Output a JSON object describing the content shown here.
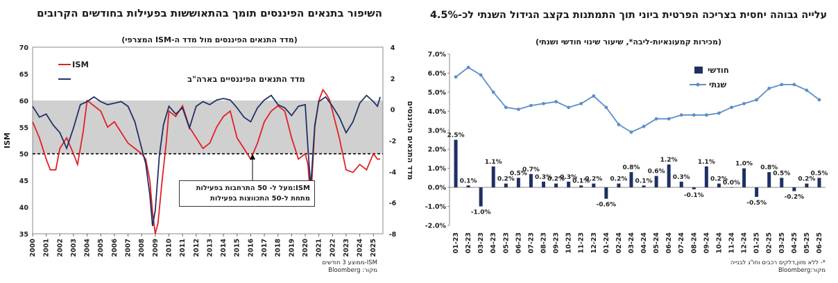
{
  "chart_data": [
    {
      "type": "line",
      "title": "השיפור בתנאים הפיננסים תומך בהתאוששות בפעילות בחודשים הקרובים",
      "subtitle": "(מדד התנאים הפיננסים מול מדד ה-ISM המצרפי)",
      "ylabel": "ISM",
      "y2label": "מדד התנאים הפיננסים",
      "ylim": [
        35,
        70
      ],
      "y2lim": [
        -8,
        4
      ],
      "yticks": [
        "35",
        "40",
        "45",
        "50",
        "55",
        "60",
        "65",
        "70"
      ],
      "y2ticks": [
        "-8",
        "-6",
        "-4",
        "-2",
        "0",
        "2",
        "4"
      ],
      "xticks": [
        "2000",
        "2001",
        "2002",
        "2003",
        "2004",
        "2005",
        "2006",
        "2007",
        "2008",
        "2009",
        "2010",
        "2011",
        "2012",
        "2013",
        "2014",
        "2015",
        "2016",
        "2017",
        "2018",
        "2019",
        "2020",
        "2021",
        "2022",
        "2023",
        "2024",
        "2025"
      ],
      "shaded_band": [
        50,
        60
      ],
      "reference_line": 50,
      "legend_position": "top-left",
      "colors": {
        "ism": "#e31e24",
        "fci": "#1f3064",
        "band": "#d0d0d0"
      },
      "series": [
        {
          "name": "ISM",
          "axis": "left",
          "x": [
            2000,
            2000.5,
            2001,
            2001.3,
            2001.7,
            2002,
            2002.5,
            2003,
            2003.3,
            2003.7,
            2004,
            2004.5,
            2005,
            2005.5,
            2006,
            2006.5,
            2007,
            2007.5,
            2008,
            2008.3,
            2008.6,
            2008.8,
            2009,
            2009.2,
            2009.5,
            2009.8,
            2010,
            2010.5,
            2011,
            2011.5,
            2012,
            2012.5,
            2013,
            2013.5,
            2014,
            2014.5,
            2015,
            2015.5,
            2016,
            2016.5,
            2017,
            2017.5,
            2018,
            2018.5,
            2019,
            2019.5,
            2020,
            2020.2,
            2020.4,
            2020.7,
            2021,
            2021.3,
            2021.6,
            2021.8,
            2022,
            2022.5,
            2023,
            2023.5,
            2024,
            2024.5,
            2025,
            2025.3,
            2025.5
          ],
          "values": [
            56,
            53,
            49,
            47,
            47,
            51,
            53,
            50,
            48,
            54,
            60,
            59,
            58,
            55,
            56,
            54,
            52,
            51,
            50,
            49,
            45,
            39,
            35,
            37,
            45,
            52,
            58,
            57,
            59,
            55,
            53,
            51,
            52,
            55,
            57,
            58,
            53,
            51,
            49,
            52,
            56,
            58,
            59,
            58,
            53,
            49,
            50,
            48,
            41,
            55,
            60,
            62,
            61,
            60,
            58,
            53,
            47,
            46.5,
            48,
            47,
            50,
            49,
            49
          ]
        },
        {
          "name": "מדד התנאים הפיננסיים בארה\"ב",
          "axis": "right",
          "x": [
            2000,
            2000.5,
            2001,
            2001.5,
            2002,
            2002.5,
            2003,
            2003.5,
            2004,
            2004.5,
            2005,
            2005.5,
            2006,
            2006.5,
            2007,
            2007.5,
            2008,
            2008.3,
            2008.6,
            2008.8,
            2009,
            2009.3,
            2009.6,
            2010,
            2010.5,
            2011,
            2011.5,
            2012,
            2012.5,
            2013,
            2013.5,
            2014,
            2014.5,
            2015,
            2015.5,
            2016,
            2016.5,
            2017,
            2017.5,
            2018,
            2018.5,
            2019,
            2019.5,
            2020,
            2020.2,
            2020.4,
            2020.7,
            2021,
            2021.5,
            2022,
            2022.5,
            2023,
            2023.5,
            2024,
            2024.5,
            2025,
            2025.3,
            2025.5
          ],
          "values": [
            0.2,
            -0.5,
            -0.3,
            -1,
            -1.5,
            -2.5,
            -1.2,
            0.3,
            0.5,
            0.8,
            0.5,
            0.3,
            0.4,
            0.5,
            0.2,
            -0.8,
            -2.5,
            -3.5,
            -5.5,
            -7.5,
            -6.5,
            -3,
            -1,
            0.2,
            -0.3,
            0.1,
            -1.2,
            0.2,
            0.5,
            0.3,
            0.6,
            0.7,
            0.6,
            0.1,
            -0.5,
            -0.8,
            0.1,
            0.6,
            0.9,
            0.3,
            0.1,
            -0.4,
            0.2,
            0.3,
            -2.5,
            -5,
            -1,
            0.5,
            0.8,
            0.2,
            -0.5,
            -1.5,
            -0.8,
            0.4,
            0.9,
            0.5,
            0.2,
            0.8
          ]
        }
      ],
      "annotation": "ISM:מעל ל- 50 התרחבות בפעילות\nמתחת ל-50 התכווצות בפעילות",
      "footnote": "ISM-ממוצע 3 חודשים\nמקור: Bloomberg"
    },
    {
      "type": "bar",
      "title": "עלייה גבוהה יחסית בצריכה הפרטית ביוני תוך התמתנות בקצב הגידול השנתי לכ-4.5%",
      "subtitle": "(מכירות קמעונאיות-ליבה*, שיעור שינוי חודשי ושנתי)",
      "ylim": [
        -2.0,
        7.0
      ],
      "yticks": [
        "-2.0%",
        "-1.0%",
        "0.0%",
        "1.0%",
        "2.0%",
        "3.0%",
        "4.0%",
        "5.0%",
        "6.0%",
        "7.0%"
      ],
      "categories": [
        "01-23",
        "02-23",
        "03-23",
        "04-23",
        "05-23",
        "06-23",
        "07-23",
        "08-23",
        "09-23",
        "10-23",
        "11-23",
        "12-23",
        "01-24",
        "02-24",
        "03-24",
        "04-24",
        "05-24",
        "06-24",
        "07-24",
        "08-24",
        "09-24",
        "10-24",
        "11-24",
        "12-24",
        "01-25",
        "02-25",
        "03-25",
        "04-25",
        "05-25",
        "06-25"
      ],
      "legend_position": "top-center",
      "colors": {
        "monthly": "#1f3064",
        "annual": "#5b8ec9"
      },
      "series": [
        {
          "name": "חודשי",
          "type": "bar",
          "values": [
            2.5,
            0.1,
            -1.0,
            1.1,
            0.2,
            0.5,
            0.7,
            0.3,
            0.2,
            0.3,
            0.1,
            0.2,
            -0.6,
            0.2,
            0.8,
            0.1,
            0.6,
            1.2,
            0.3,
            -0.1,
            1.1,
            0.2,
            0.0,
            1.0,
            -0.5,
            0.8,
            0.5,
            -0.2,
            0.2,
            0.5
          ],
          "labels": [
            "2.5%",
            "0.1%",
            "-1.0%",
            "1.1%",
            "0.2%",
            "0.5%",
            "0.7%",
            "0.3%",
            "0.2%",
            "0.3%",
            "0.1%",
            "0.2%",
            "-0.6%",
            "0.2%",
            "0.8%",
            "0.1%",
            "0.6%",
            "1.2%",
            "0.3%",
            "-0.1%",
            "1.1%",
            "0.2%",
            "0.0%",
            "1.0%",
            "-0.5%",
            "0.8%",
            "0.5%",
            "-0.2%",
            "0.2%",
            "0.5%"
          ]
        },
        {
          "name": "שנתי",
          "type": "line",
          "values": [
            5.8,
            6.3,
            5.9,
            5.0,
            4.2,
            4.1,
            4.3,
            4.4,
            4.5,
            4.2,
            4.4,
            4.8,
            4.2,
            3.3,
            2.9,
            3.2,
            3.6,
            3.6,
            3.8,
            3.8,
            3.8,
            3.9,
            4.2,
            4.4,
            4.6,
            5.2,
            5.4,
            5.4,
            5.1,
            4.6
          ]
        }
      ],
      "footnote": "*- ללא מזון,דלקים רכבים וחו\"ג לבנייה\nמקור:Bloomberg"
    }
  ]
}
